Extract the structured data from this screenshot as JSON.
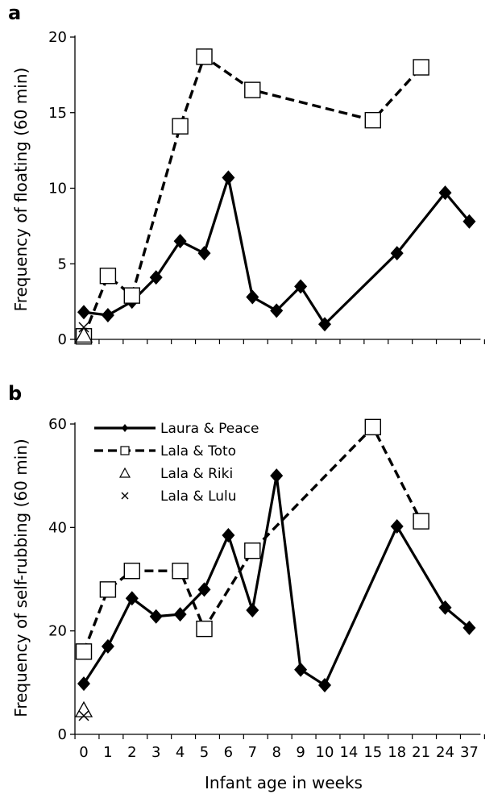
{
  "chart_data": [
    {
      "panel": "a",
      "type": "line",
      "ylabel": "Frequency of floating (60 min)",
      "xlabel": "",
      "ylim": [
        0,
        20
      ],
      "yticks": [
        0,
        5,
        10,
        15,
        20
      ],
      "categories": [
        "0",
        "1",
        "2",
        "3",
        "4",
        "5",
        "6",
        "7",
        "8",
        "9",
        "10",
        "14",
        "15",
        "18",
        "21",
        "24",
        "37"
      ],
      "grid": false,
      "series": [
        {
          "name": "Laura & Peace",
          "style": "solid",
          "marker": "diamond",
          "points": [
            [
              0,
              1.8
            ],
            [
              1,
              1.6
            ],
            [
              2,
              2.5
            ],
            [
              3,
              4.1
            ],
            [
              4,
              6.5
            ],
            [
              5,
              5.7
            ],
            [
              6,
              10.7
            ],
            [
              7,
              2.8
            ],
            [
              8,
              1.9
            ],
            [
              9,
              3.5
            ],
            [
              10,
              1.0
            ],
            [
              18,
              5.7
            ],
            [
              24,
              9.7
            ],
            [
              37,
              7.8
            ]
          ]
        },
        {
          "name": "Lala & Toto",
          "style": "dashed",
          "marker": "square",
          "points": [
            [
              0,
              0.2
            ],
            [
              1,
              4.2
            ],
            [
              2,
              2.9
            ],
            [
              4,
              14.1
            ],
            [
              5,
              18.7
            ],
            [
              7,
              16.5
            ],
            [
              15,
              14.5
            ],
            [
              21,
              18.0
            ]
          ]
        },
        {
          "name": "Lala & Riki",
          "style": "none",
          "marker": "triangle",
          "points": [
            [
              0,
              0.2
            ]
          ]
        },
        {
          "name": "Lala & Lulu",
          "style": "none",
          "marker": "x",
          "points": [
            [
              0,
              0.8
            ]
          ]
        }
      ]
    },
    {
      "panel": "b",
      "type": "line",
      "ylabel": "Frequency of self-rubbing (60 min)",
      "xlabel": "Infant age in weeks",
      "ylim": [
        0,
        60
      ],
      "yticks": [
        0,
        20,
        40,
        60
      ],
      "categories": [
        "0",
        "1",
        "2",
        "3",
        "4",
        "5",
        "6",
        "7",
        "8",
        "9",
        "10",
        "14",
        "15",
        "18",
        "21",
        "24",
        "37"
      ],
      "grid": false,
      "legend": {
        "position": "top-left",
        "entries": [
          "Laura & Peace",
          "Lala & Toto",
          "Lala & Riki",
          "Lala & Lulu"
        ]
      },
      "series": [
        {
          "name": "Laura & Peace",
          "style": "solid",
          "marker": "diamond",
          "points": [
            [
              0,
              9.8
            ],
            [
              1,
              17.0
            ],
            [
              2,
              26.3
            ],
            [
              3,
              22.8
            ],
            [
              4,
              23.2
            ],
            [
              5,
              28.0
            ],
            [
              6,
              38.5
            ],
            [
              7,
              24.0
            ],
            [
              8,
              50.0
            ],
            [
              9,
              12.5
            ],
            [
              10,
              9.5
            ],
            [
              18,
              40.2
            ],
            [
              24,
              24.5
            ],
            [
              37,
              20.6
            ]
          ]
        },
        {
          "name": "Lala & Toto",
          "style": "dashed",
          "marker": "square",
          "points": [
            [
              0,
              16.0
            ],
            [
              1,
              28.0
            ],
            [
              2,
              31.6
            ],
            [
              4,
              31.6
            ],
            [
              5,
              20.4
            ],
            [
              7,
              35.5
            ],
            [
              15,
              59.4
            ],
            [
              21,
              41.2
            ]
          ]
        },
        {
          "name": "Lala & Riki",
          "style": "none",
          "marker": "triangle",
          "points": [
            [
              0,
              4.5
            ]
          ]
        },
        {
          "name": "Lala & Lulu",
          "style": "none",
          "marker": "x",
          "points": [
            [
              0,
              3.6
            ]
          ]
        }
      ]
    }
  ]
}
